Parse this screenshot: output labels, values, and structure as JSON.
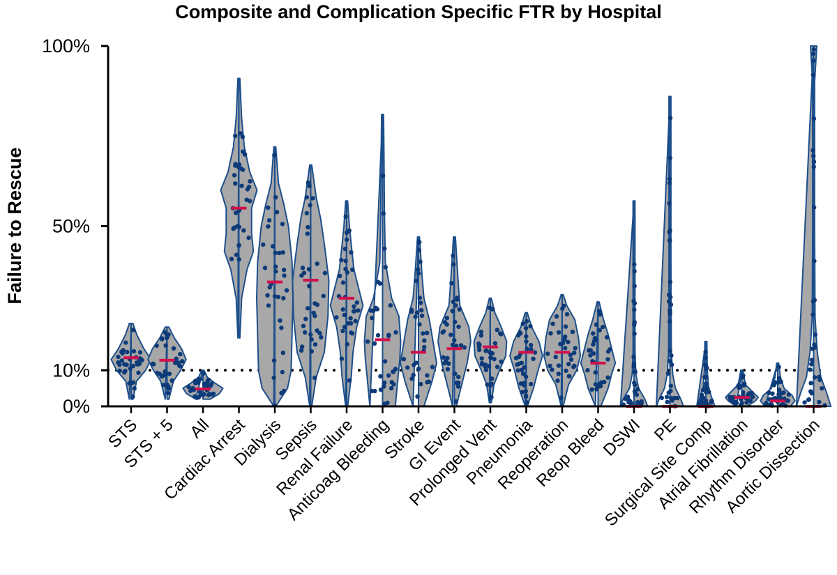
{
  "chart_data": {
    "type": "violin",
    "title": "Composite and Complication Specific FTR by Hospital",
    "ylabel": "Failure to Rescue",
    "xlabel": "",
    "ylim": [
      0,
      100
    ],
    "yticks": [
      {
        "value": 0,
        "label": "0%"
      },
      {
        "value": 10,
        "label": "10%"
      },
      {
        "value": 50,
        "label": "50%"
      },
      {
        "value": 100,
        "label": "100%"
      }
    ],
    "reference_line": {
      "value": 10,
      "style": "dotted"
    },
    "colors": {
      "fill": "#a8a8a8",
      "outline": "#1d4f8c",
      "points": "#0d3a78",
      "median": "#d0104c"
    },
    "categories": [
      {
        "label": "STS",
        "min": 2,
        "max": 23,
        "median": 13.5,
        "profile": [
          [
            2,
            0.2
          ],
          [
            7,
            0.6
          ],
          [
            10,
            1.6
          ],
          [
            13,
            2.2
          ],
          [
            16,
            1.4
          ],
          [
            20,
            0.6
          ],
          [
            23,
            0.2
          ]
        ]
      },
      {
        "label": "STS + 5",
        "min": 2,
        "max": 22,
        "median": 12.8,
        "profile": [
          [
            2,
            0.2
          ],
          [
            7,
            0.7
          ],
          [
            10,
            1.5
          ],
          [
            13,
            2.1
          ],
          [
            16,
            1.6
          ],
          [
            19,
            0.8
          ],
          [
            22,
            0.2
          ]
        ]
      },
      {
        "label": "All",
        "min": 2,
        "max": 10,
        "median": 4.8,
        "profile": [
          [
            2,
            0.8
          ],
          [
            3.5,
            1.8
          ],
          [
            5,
            2.2
          ],
          [
            6.5,
            1.3
          ],
          [
            8,
            0.5
          ],
          [
            10,
            0.1
          ]
        ]
      },
      {
        "label": "Cardiac Arrest",
        "min": 19,
        "max": 91,
        "median": 55,
        "profile": [
          [
            19,
            0.1
          ],
          [
            30,
            0.3
          ],
          [
            38,
            0.9
          ],
          [
            43,
            1.6
          ],
          [
            48,
            1.4
          ],
          [
            55,
            1.4
          ],
          [
            60,
            2.0
          ],
          [
            65,
            1.2
          ],
          [
            72,
            0.6
          ],
          [
            80,
            0.3
          ],
          [
            91,
            0.1
          ]
        ]
      },
      {
        "label": "Dialysis",
        "min": 0,
        "max": 72,
        "median": 34.5,
        "profile": [
          [
            0,
            0.1
          ],
          [
            5,
            1.4
          ],
          [
            10,
            1.8
          ],
          [
            20,
            1.9
          ],
          [
            30,
            2.0
          ],
          [
            40,
            1.9
          ],
          [
            50,
            1.5
          ],
          [
            56,
            1.0
          ],
          [
            62,
            0.4
          ],
          [
            72,
            0.1
          ]
        ]
      },
      {
        "label": "Sepsis",
        "min": 0,
        "max": 67,
        "median": 35,
        "profile": [
          [
            0,
            0.1
          ],
          [
            8,
            0.6
          ],
          [
            15,
            1.5
          ],
          [
            25,
            1.9
          ],
          [
            35,
            2.0
          ],
          [
            45,
            1.5
          ],
          [
            52,
            1.1
          ],
          [
            58,
            0.6
          ],
          [
            67,
            0.1
          ]
        ]
      },
      {
        "label": "Renal Failure",
        "min": 0,
        "max": 57,
        "median": 30,
        "profile": [
          [
            0,
            0.1
          ],
          [
            8,
            0.5
          ],
          [
            15,
            0.7
          ],
          [
            22,
            1.1
          ],
          [
            28,
            1.8
          ],
          [
            32,
            1.4
          ],
          [
            38,
            0.8
          ],
          [
            45,
            0.5
          ],
          [
            50,
            0.3
          ],
          [
            57,
            0.1
          ]
        ]
      },
      {
        "label": "Anticoag Bleeding",
        "min": 0,
        "max": 81,
        "median": 18.5,
        "profile": [
          [
            0,
            1.4
          ],
          [
            8,
            1.7
          ],
          [
            13,
            1.9
          ],
          [
            18,
            2.0
          ],
          [
            25,
            1.8
          ],
          [
            30,
            1.0
          ],
          [
            40,
            0.3
          ],
          [
            55,
            0.2
          ],
          [
            70,
            0.15
          ],
          [
            81,
            0.1
          ]
        ]
      },
      {
        "label": "Stroke",
        "min": 0,
        "max": 47,
        "median": 15,
        "profile": [
          [
            0,
            0.6
          ],
          [
            7,
            1.5
          ],
          [
            12,
            2.0
          ],
          [
            18,
            1.6
          ],
          [
            24,
            1.2
          ],
          [
            30,
            0.6
          ],
          [
            36,
            0.4
          ],
          [
            47,
            0.1
          ]
        ]
      },
      {
        "label": "GI Event",
        "min": 0,
        "max": 47,
        "median": 16,
        "profile": [
          [
            0,
            0.2
          ],
          [
            6,
            0.8
          ],
          [
            12,
            1.4
          ],
          [
            18,
            1.8
          ],
          [
            22,
            1.6
          ],
          [
            28,
            0.6
          ],
          [
            35,
            0.4
          ],
          [
            47,
            0.1
          ]
        ]
      },
      {
        "label": "Prolonged Vent",
        "min": 1,
        "max": 30,
        "median": 16.5,
        "profile": [
          [
            1,
            0.1
          ],
          [
            6,
            0.4
          ],
          [
            10,
            1.0
          ],
          [
            14,
            1.7
          ],
          [
            18,
            1.8
          ],
          [
            22,
            1.2
          ],
          [
            26,
            0.5
          ],
          [
            30,
            0.1
          ]
        ]
      },
      {
        "label": "Pneumonia",
        "min": 0,
        "max": 26,
        "median": 15,
        "profile": [
          [
            0,
            0.1
          ],
          [
            5,
            0.8
          ],
          [
            10,
            1.3
          ],
          [
            14,
            1.8
          ],
          [
            18,
            1.4
          ],
          [
            22,
            0.6
          ],
          [
            26,
            0.1
          ]
        ]
      },
      {
        "label": "Reoperation",
        "min": 0,
        "max": 31,
        "median": 15,
        "profile": [
          [
            0,
            0.1
          ],
          [
            6,
            0.7
          ],
          [
            10,
            1.6
          ],
          [
            14,
            2.0
          ],
          [
            19,
            1.8
          ],
          [
            24,
            1.4
          ],
          [
            28,
            0.5
          ],
          [
            31,
            0.1
          ]
        ]
      },
      {
        "label": "Reop Bleed",
        "min": 0,
        "max": 29,
        "median": 12,
        "profile": [
          [
            0,
            0.3
          ],
          [
            5,
            1.1
          ],
          [
            9,
            1.5
          ],
          [
            12,
            1.9
          ],
          [
            16,
            1.5
          ],
          [
            20,
            1.1
          ],
          [
            24,
            0.6
          ],
          [
            29,
            0.1
          ]
        ]
      },
      {
        "label": "DSWI",
        "min": 0,
        "max": 57,
        "median": 0,
        "profile": [
          [
            0,
            1.5
          ],
          [
            2,
            1.2
          ],
          [
            5,
            0.5
          ],
          [
            9,
            0.2
          ],
          [
            15,
            0.1
          ],
          [
            40,
            0.08
          ],
          [
            57,
            0.05
          ]
        ]
      },
      {
        "label": "PE",
        "min": 0,
        "max": 86,
        "median": 0,
        "profile": [
          [
            0,
            1.5
          ],
          [
            2,
            1.2
          ],
          [
            5,
            0.6
          ],
          [
            9,
            0.3
          ],
          [
            15,
            0.15
          ],
          [
            40,
            0.1
          ],
          [
            86,
            0.05
          ]
        ]
      },
      {
        "label": "Surgical Site Comp",
        "min": 0,
        "max": 18,
        "median": 0,
        "profile": [
          [
            0,
            1.0
          ],
          [
            2,
            0.7
          ],
          [
            5,
            0.3
          ],
          [
            10,
            0.15
          ],
          [
            18,
            0.05
          ]
        ]
      },
      {
        "label": "Atrial Fibrillation",
        "min": 0,
        "max": 10,
        "median": 2.5,
        "profile": [
          [
            0,
            0.6
          ],
          [
            1.5,
            1.5
          ],
          [
            2.5,
            1.8
          ],
          [
            4,
            1.2
          ],
          [
            6,
            0.4
          ],
          [
            10,
            0.1
          ]
        ]
      },
      {
        "label": "Rhythm Disorder",
        "min": 0,
        "max": 12,
        "median": 1.5,
        "profile": [
          [
            0,
            1.4
          ],
          [
            1.5,
            1.9
          ],
          [
            3,
            1.6
          ],
          [
            5,
            0.7
          ],
          [
            8,
            0.3
          ],
          [
            12,
            0.1
          ]
        ]
      },
      {
        "label": "Aortic Dissection",
        "min": 0,
        "max": 100,
        "median": 0,
        "profile": [
          [
            0,
            1.9
          ],
          [
            4,
            1.4
          ],
          [
            8,
            0.8
          ],
          [
            15,
            0.4
          ],
          [
            25,
            0.15
          ],
          [
            50,
            0.08
          ],
          [
            90,
            0.1
          ],
          [
            98,
            0.3
          ],
          [
            100,
            0.35
          ]
        ]
      }
    ]
  }
}
